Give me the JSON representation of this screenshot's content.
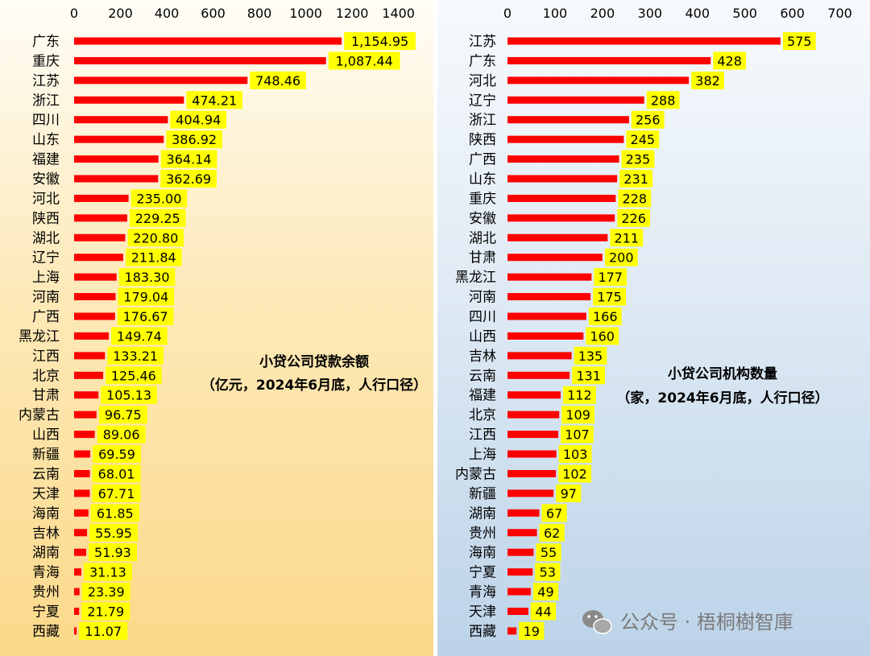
{
  "chart_data": [
    {
      "type": "bar",
      "orientation": "horizontal",
      "title": "小贷公司贷款余额",
      "subtitle": "（亿元，2024年6月底，人行口径）",
      "xlim": [
        0,
        1400
      ],
      "ticks": [
        "0",
        "200",
        "400",
        "600",
        "800",
        "1000",
        "1200",
        "1400"
      ],
      "bar_color": "#ff0000",
      "label_bg": "#ffff00",
      "categories": [
        "广东",
        "重庆",
        "江苏",
        "浙江",
        "四川",
        "山东",
        "福建",
        "安徽",
        "河北",
        "陕西",
        "湖北",
        "辽宁",
        "上海",
        "河南",
        "广西",
        "黑龙江",
        "江西",
        "北京",
        "甘肃",
        "内蒙古",
        "山西",
        "新疆",
        "云南",
        "天津",
        "海南",
        "吉林",
        "湖南",
        "青海",
        "贵州",
        "宁夏",
        "西藏"
      ],
      "values": [
        1154.95,
        1087.44,
        748.46,
        474.21,
        404.94,
        386.92,
        364.14,
        362.69,
        235.0,
        229.25,
        220.8,
        211.84,
        183.3,
        179.04,
        176.67,
        149.74,
        133.21,
        125.46,
        105.13,
        96.75,
        89.06,
        69.59,
        68.01,
        67.71,
        61.85,
        55.95,
        51.93,
        31.13,
        23.39,
        21.79,
        11.07
      ],
      "labels": [
        "1,154.95",
        "1,087.44",
        "748.46",
        "474.21",
        "404.94",
        "386.92",
        "364.14",
        "362.69",
        "235.00",
        "229.25",
        "220.80",
        "211.84",
        "183.30",
        "179.04",
        "176.67",
        "149.74",
        "133.21",
        "125.46",
        "105.13",
        "96.75",
        "89.06",
        "69.59",
        "68.01",
        "67.71",
        "61.85",
        "55.95",
        "51.93",
        "31.13",
        "23.39",
        "21.79",
        "11.07"
      ]
    },
    {
      "type": "bar",
      "orientation": "horizontal",
      "title": "小贷公司机构数量",
      "subtitle": "（家，2024年6月底，人行口径）",
      "xlim": [
        0,
        700
      ],
      "ticks": [
        "0",
        "100",
        "200",
        "300",
        "400",
        "500",
        "600",
        "700"
      ],
      "bar_color": "#ff0000",
      "label_bg": "#ffff00",
      "categories": [
        "江苏",
        "广东",
        "河北",
        "辽宁",
        "浙江",
        "陕西",
        "广西",
        "山东",
        "重庆",
        "安徽",
        "湖北",
        "甘肃",
        "黑龙江",
        "河南",
        "四川",
        "山西",
        "吉林",
        "云南",
        "福建",
        "北京",
        "江西",
        "上海",
        "内蒙古",
        "新疆",
        "湖南",
        "贵州",
        "海南",
        "宁夏",
        "青海",
        "天津",
        "西藏"
      ],
      "values": [
        575,
        428,
        382,
        288,
        256,
        245,
        235,
        231,
        228,
        226,
        211,
        200,
        177,
        175,
        166,
        160,
        135,
        131,
        112,
        109,
        107,
        103,
        102,
        97,
        67,
        62,
        55,
        53,
        49,
        44,
        19
      ],
      "labels": [
        "575",
        "428",
        "382",
        "288",
        "256",
        "245",
        "235",
        "231",
        "228",
        "226",
        "211",
        "200",
        "177",
        "175",
        "166",
        "160",
        "135",
        "131",
        "112",
        "109",
        "107",
        "103",
        "102",
        "97",
        "67",
        "62",
        "55",
        "53",
        "49",
        "44",
        "19"
      ]
    }
  ],
  "watermark": {
    "icon": "wechat-icon",
    "text": "公众号 · 梧桐樹智庫"
  }
}
